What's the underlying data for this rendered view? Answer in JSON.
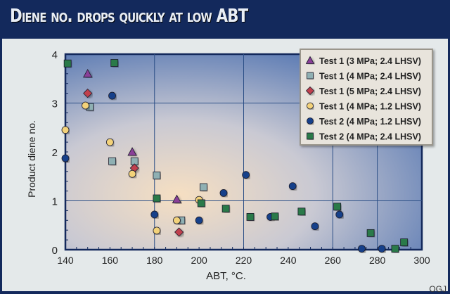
{
  "title": "Diene no. drops quickly at low ABT",
  "credit": "OGJ",
  "chart_data": {
    "type": "scatter",
    "title": "Diene no. drops quickly at low ABT",
    "xlabel": "ABT, °C.",
    "ylabel": "Product diene no.",
    "xlim": [
      140,
      300
    ],
    "ylim": [
      0,
      4
    ],
    "xticks": [
      140,
      160,
      180,
      200,
      220,
      240,
      260,
      280,
      300
    ],
    "yticks": [
      0,
      1,
      2,
      3,
      4
    ],
    "grid": true,
    "legend_position": "top-right",
    "series": [
      {
        "name": "Test 1 (3 MPa; 2.4 LHSV)",
        "marker": "triangle",
        "color": "#8a3f98",
        "points": [
          [
            150,
            3.6
          ],
          [
            170,
            2.0
          ],
          [
            190,
            1.03
          ]
        ]
      },
      {
        "name": "Test 1 (4 MPa; 2.4 LHSV)",
        "marker": "square",
        "color": "#8fb0b3",
        "points": [
          [
            151,
            2.92
          ],
          [
            161,
            1.81
          ],
          [
            171,
            1.81
          ],
          [
            181,
            1.52
          ],
          [
            202,
            1.28
          ],
          [
            192,
            0.6
          ]
        ]
      },
      {
        "name": "Test 1 (5 MPa; 2.4 LHSV)",
        "marker": "diamond",
        "color": "#c0404e",
        "points": [
          [
            150,
            3.2
          ],
          [
            171,
            1.67
          ],
          [
            191,
            0.36
          ]
        ]
      },
      {
        "name": "Test 1 (4 MPa; 1.2 LHSV)",
        "marker": "circle",
        "color": "#f3d27a",
        "points": [
          [
            140,
            2.45
          ],
          [
            149,
            2.95
          ],
          [
            160,
            2.2
          ],
          [
            170,
            1.55
          ],
          [
            181,
            0.39
          ],
          [
            190,
            0.6
          ],
          [
            200,
            1.02
          ]
        ]
      },
      {
        "name": "Test 2 (4 MPa; 1.2 LHSV)",
        "marker": "circle",
        "color": "#17408a",
        "points": [
          [
            140,
            1.87
          ],
          [
            161,
            3.15
          ],
          [
            180,
            0.72
          ],
          [
            200,
            0.6
          ],
          [
            211,
            1.16
          ],
          [
            221,
            1.53
          ],
          [
            232,
            0.67
          ],
          [
            242,
            1.3
          ],
          [
            252,
            0.48
          ],
          [
            263,
            0.72
          ],
          [
            273,
            0.02
          ],
          [
            282,
            0.02
          ]
        ]
      },
      {
        "name": "Test 2 (4 MPa; 2.4 LHSV)",
        "marker": "square",
        "color": "#2a7a4a",
        "points": [
          [
            141,
            3.81
          ],
          [
            162,
            3.82
          ],
          [
            181,
            1.05
          ],
          [
            201,
            0.95
          ],
          [
            212,
            0.84
          ],
          [
            223,
            0.67
          ],
          [
            234,
            0.68
          ],
          [
            246,
            0.78
          ],
          [
            262,
            0.88
          ],
          [
            277,
            0.34
          ],
          [
            288,
            0.02
          ],
          [
            292,
            0.15
          ]
        ]
      }
    ]
  }
}
